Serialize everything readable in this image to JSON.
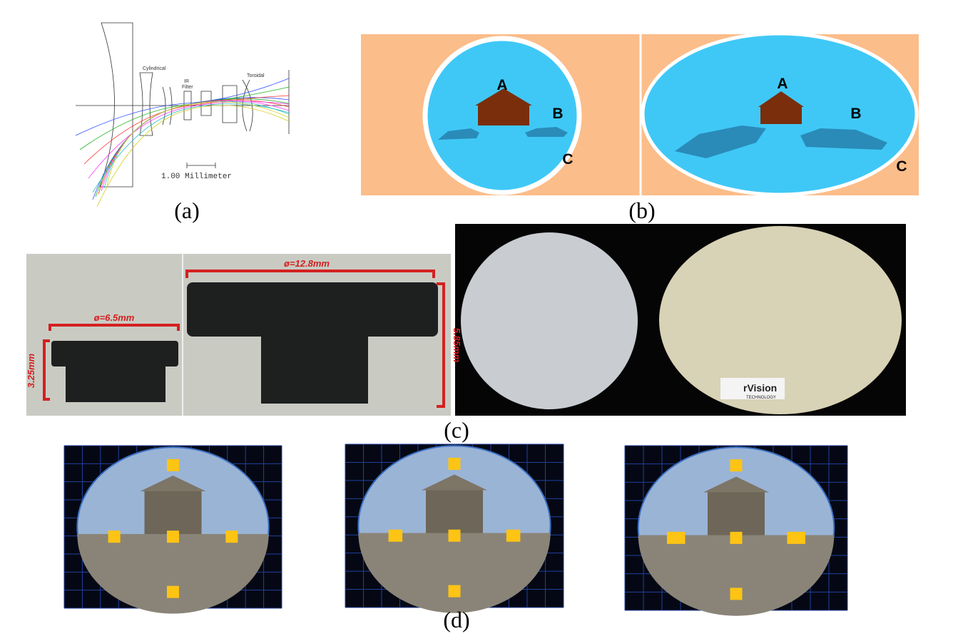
{
  "panels": [
    {
      "caption": "(a)",
      "labels": [
        "Cylindrical",
        "IR",
        "Filter",
        "Toroidal",
        "1.00 Millimeter"
      ]
    },
    {
      "caption": "(b)",
      "left_labels": [
        "A",
        "B",
        "C"
      ],
      "right_labels": [
        "A",
        "B",
        "C"
      ]
    },
    {
      "caption": "(c)",
      "labels": [
        "ø=6.5mm",
        "3.25mm",
        "ø=12.8mm",
        "5.85mm",
        "rVision",
        "TECHNOLOGY"
      ]
    },
    {
      "caption": "(d)"
    }
  ]
}
